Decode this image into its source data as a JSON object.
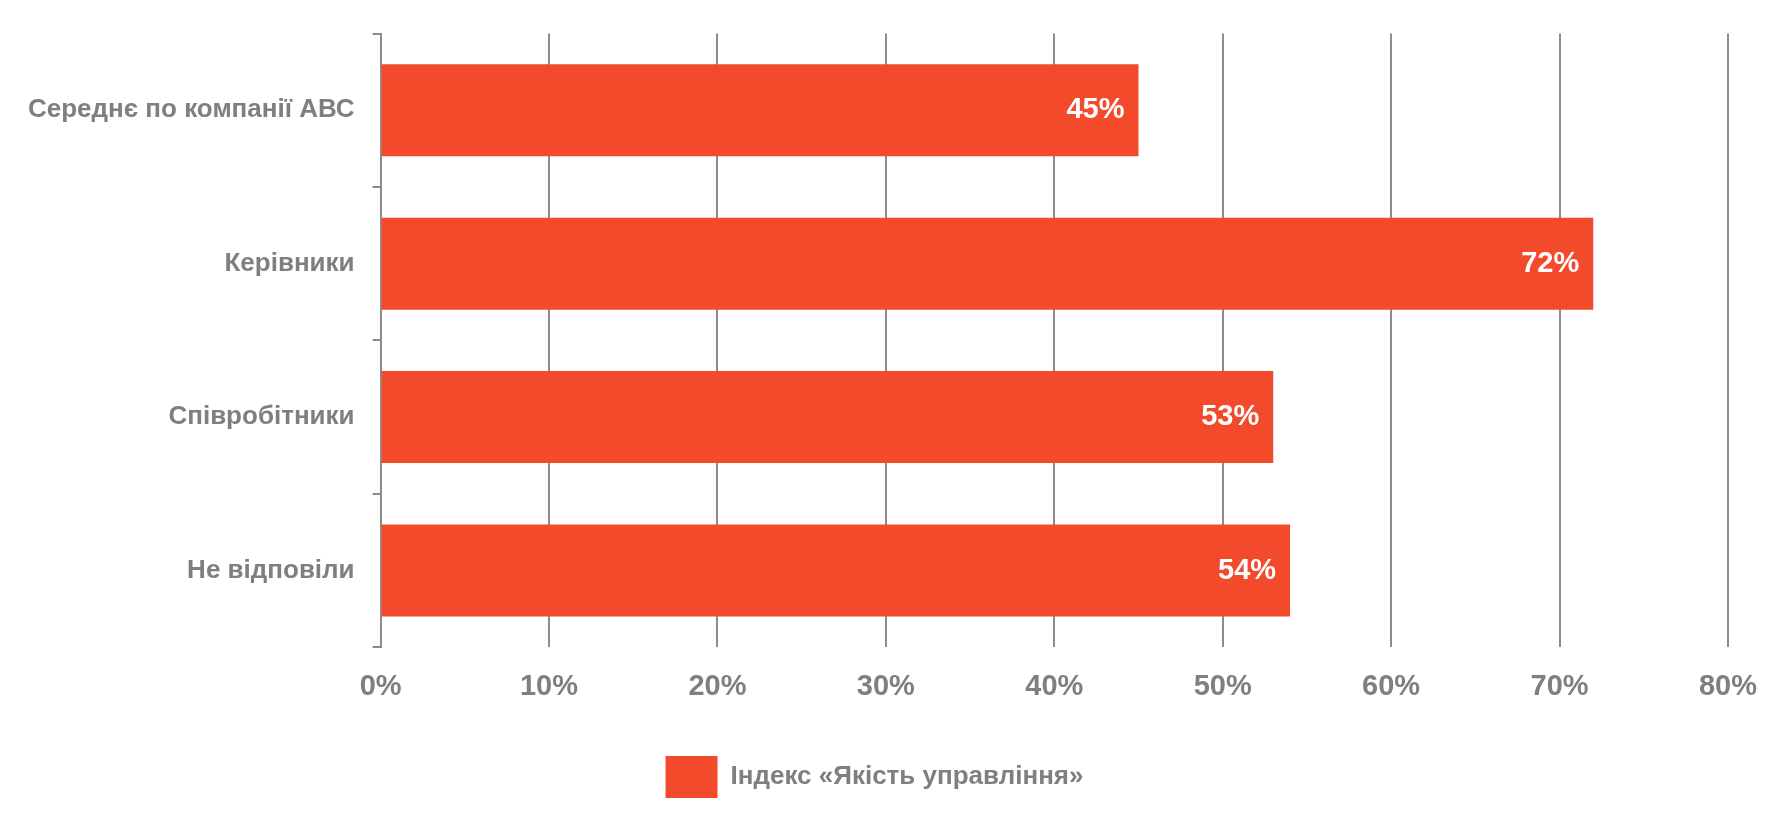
{
  "chart_data": {
    "type": "bar",
    "orientation": "horizontal",
    "categories": [
      "Середнє по компанії АВС",
      "Керівники",
      "Співробітники",
      "Не відповіли"
    ],
    "series": [
      {
        "name": "Індекс «Якість управління»",
        "color": "#f24a2b",
        "values": [
          45,
          72,
          53,
          54
        ],
        "value_labels": [
          "45%",
          "72%",
          "53%",
          "54%"
        ]
      }
    ],
    "xlim": [
      0,
      80
    ],
    "xticks": [
      {
        "value": 0,
        "label": "0%"
      },
      {
        "value": 10,
        "label": "10%"
      },
      {
        "value": 20,
        "label": "20%"
      },
      {
        "value": 30,
        "label": "30%"
      },
      {
        "value": 40,
        "label": "40%"
      },
      {
        "value": 50,
        "label": "50%"
      },
      {
        "value": 60,
        "label": "60%"
      },
      {
        "value": 70,
        "label": "70%"
      },
      {
        "value": 80,
        "label": "80%"
      }
    ],
    "grid": "x",
    "legend": "bottom"
  }
}
